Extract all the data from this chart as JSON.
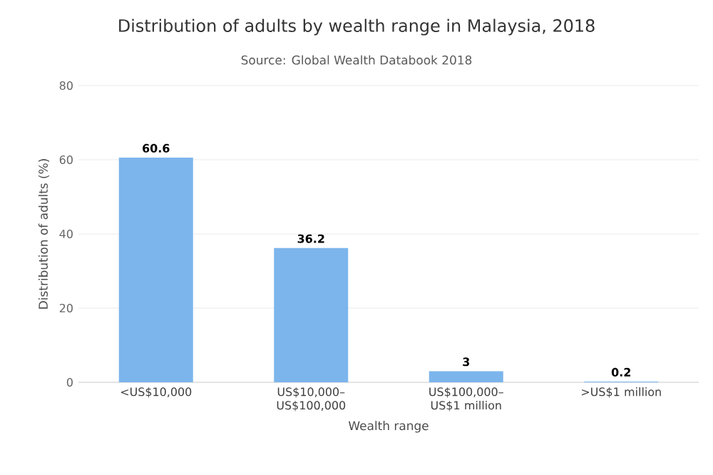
{
  "chart_data": {
    "type": "bar",
    "title": "Distribution of adults by wealth range in Malaysia, 2018",
    "subtitle": "Source: Global Wealth Databook 2018",
    "xlabel": "Wealth range",
    "ylabel": "Distribution of adults (%)",
    "categories": [
      "<US$10,000",
      "US$10,000–US$100,000",
      "US$100,000–US$1 million",
      ">US$1 million"
    ],
    "values": [
      60.6,
      36.2,
      3,
      0.2
    ],
    "color": "#7cb5ec",
    "ylim": [
      0,
      80
    ],
    "yticks": [
      0,
      20,
      40,
      60,
      80
    ],
    "grid": "y",
    "data_labels": true
  }
}
